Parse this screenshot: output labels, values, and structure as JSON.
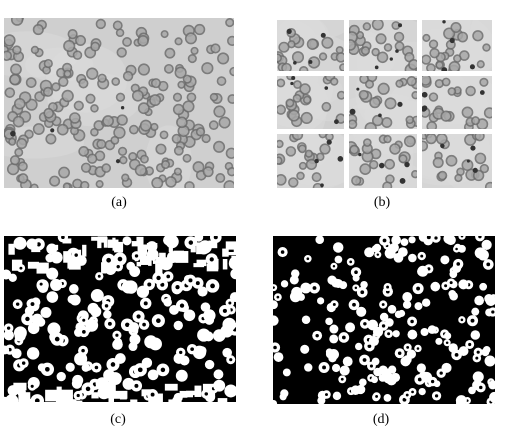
{
  "figure": {
    "captions": {
      "a": "(a)",
      "b": "(b)",
      "c": "(c)",
      "d": "(d)"
    },
    "palette": {
      "background": "#ffffff",
      "micrograph_bg": "#cfcfcf",
      "micrograph_bg_light": "#dcdcdc",
      "cell_ring": "#6e6e6e",
      "cell_center": "#a8a8a8",
      "binary_black": "#000000",
      "binary_white": "#ffffff"
    }
  }
}
